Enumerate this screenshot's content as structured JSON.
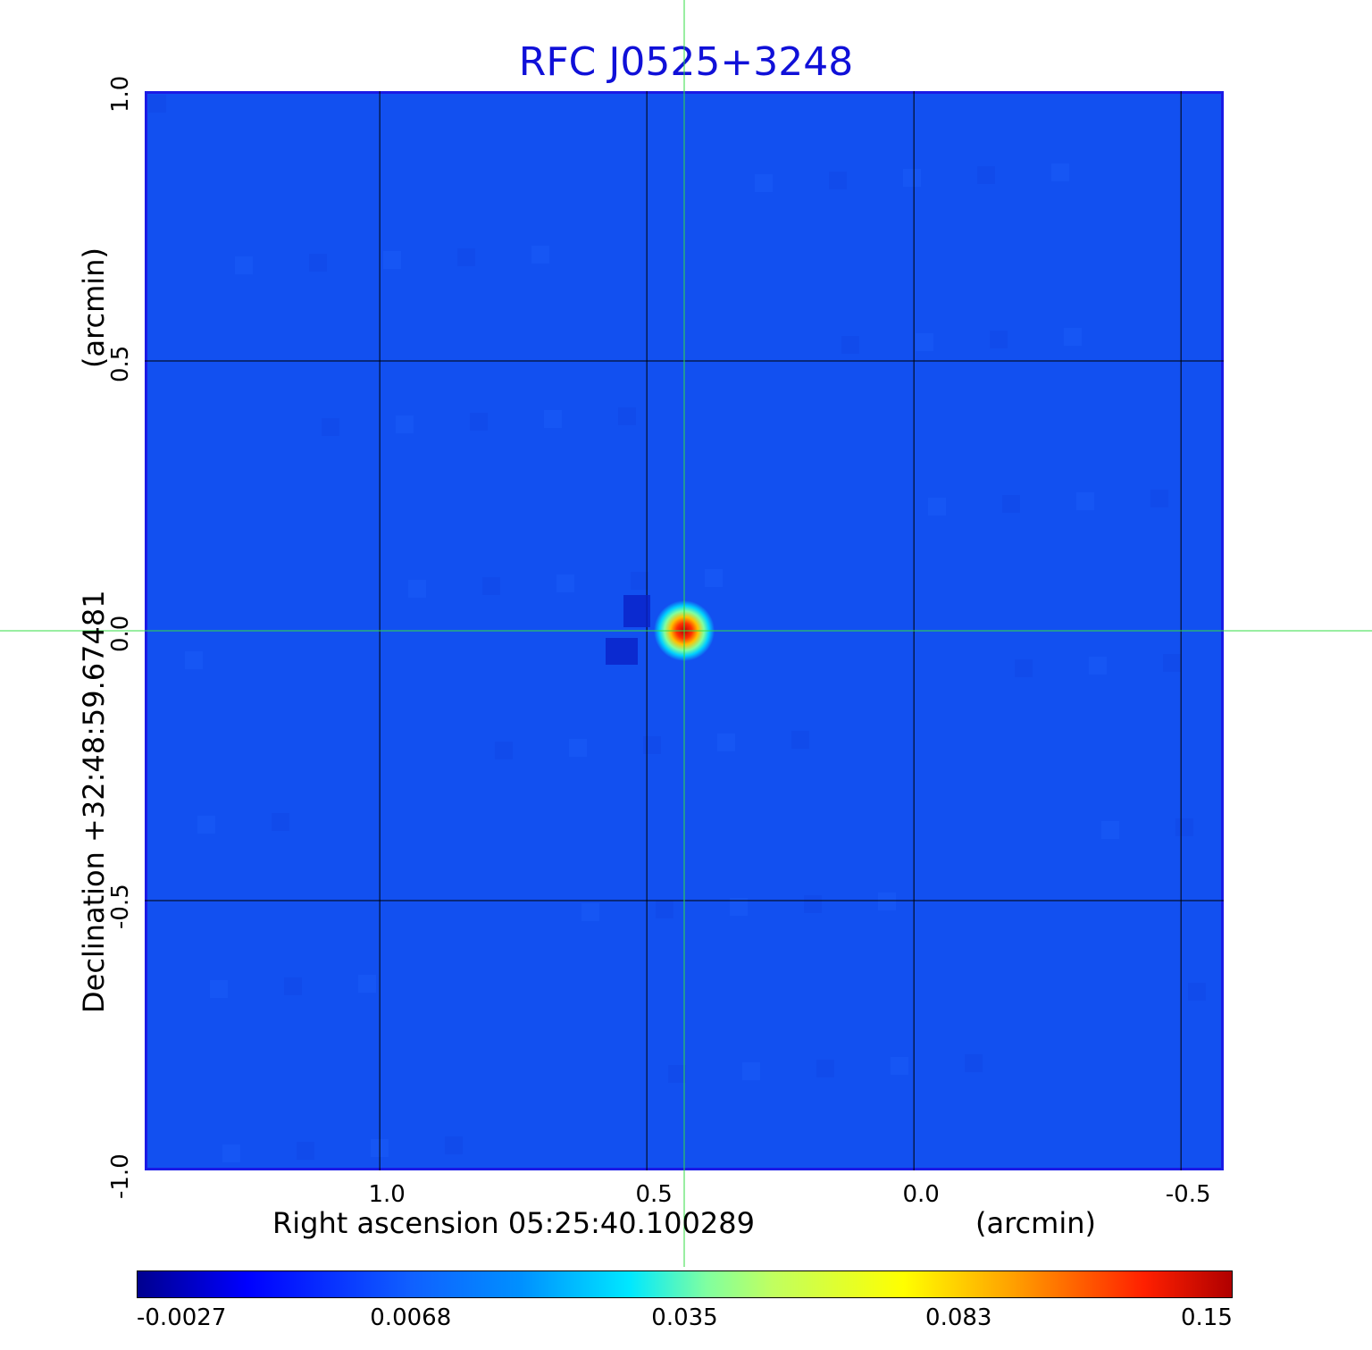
{
  "chart_data": {
    "type": "heatmap",
    "title": "RFC J0525+3248",
    "xlabel": "Right ascension  05:25:40.100289",
    "xunit": "(arcmin)",
    "ylabel": "Declination  +32:48:59.67481",
    "yunit": "(arcmin)",
    "xlim": [
      1.44,
      -0.58
    ],
    "ylim": [
      -1.0,
      1.0
    ],
    "xticks": [
      "1.0",
      "0.5",
      "0.0",
      "-0.5"
    ],
    "xtick_values": [
      1.0,
      0.5,
      0.0,
      -0.5
    ],
    "yticks": [
      "1.0",
      "0.5",
      "0.0",
      "-0.5",
      "-1.0"
    ],
    "ytick_values": [
      1.0,
      0.5,
      0.0,
      -0.5,
      -1.0
    ],
    "grid": true,
    "crosshair": {
      "x": 0.43,
      "y": 0.0,
      "color": "#33dd44"
    },
    "source_peak": {
      "x": 0.43,
      "y": 0.0,
      "value": 0.15
    },
    "colormap": "jet",
    "colorbar": {
      "ticks": [
        "-0.0027",
        "0.0068",
        "0.035",
        "0.083",
        "0.15"
      ],
      "tick_values": [
        -0.0027,
        0.0068,
        0.035,
        0.083,
        0.15
      ]
    }
  }
}
